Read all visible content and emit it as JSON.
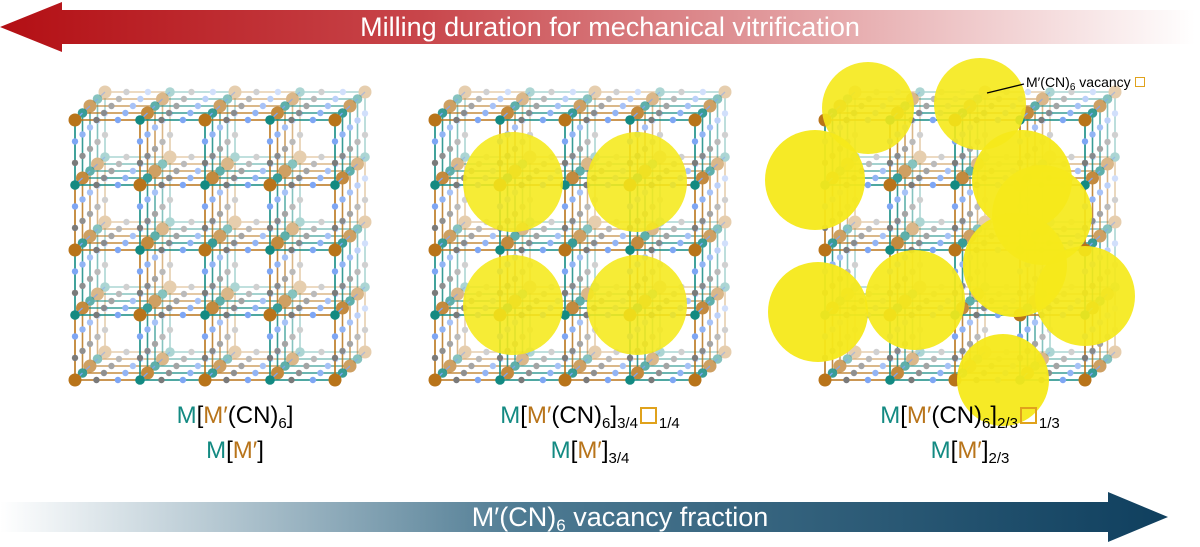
{
  "top_arrow": {
    "label": "Milling duration for mechanical vitrification",
    "color_dark": "#b30f14",
    "color_light": "#ffffff",
    "direction": "left"
  },
  "bottom_arrow": {
    "label_main": "M′(CN)",
    "label_sub": "6",
    "label_rest": " vacancy fraction",
    "color_dark": "#0f3f5e",
    "color_light": "#ffffff",
    "direction": "right"
  },
  "colors": {
    "metal_M": "#138a82",
    "metal_Mprime": "#b8741a",
    "carbon": "#7a7a7a",
    "nitrogen": "#7ea6f4",
    "vacancy": "#f5e91a",
    "vacancy_box": "#e0a21c"
  },
  "panels": [
    {
      "formula_1": {
        "m": "M",
        "b1": "[",
        "mp": "M′",
        "rest": "(CN)",
        "sub": "6",
        "b2": "]"
      },
      "formula_2": {
        "m": "M",
        "b1": "[",
        "mp": "M′",
        "b2": "]"
      },
      "vacancies": 0
    },
    {
      "formula_1": {
        "m": "M",
        "b1": "[",
        "mp": "M′",
        "rest": "(CN)",
        "sub": "6",
        "b2": "]",
        "sub2": "3/4",
        "vsub": "1/4"
      },
      "formula_2": {
        "m": "M",
        "b1": "[",
        "mp": "M′",
        "b2": "]",
        "sub": "3/4"
      },
      "vacancies": 4
    },
    {
      "formula_1": {
        "m": "M",
        "b1": "[",
        "mp": "M′",
        "rest": "(CN)",
        "sub": "6",
        "b2": "]",
        "sub2": "2/3",
        "vsub": "1/3"
      },
      "formula_2": {
        "m": "M",
        "b1": "[",
        "mp": "M′",
        "b2": "]",
        "sub": "2/3"
      },
      "vacancies": 10
    }
  ],
  "callout": {
    "main": "M′(CN)",
    "sub": "6",
    "rest": " vacancy"
  }
}
